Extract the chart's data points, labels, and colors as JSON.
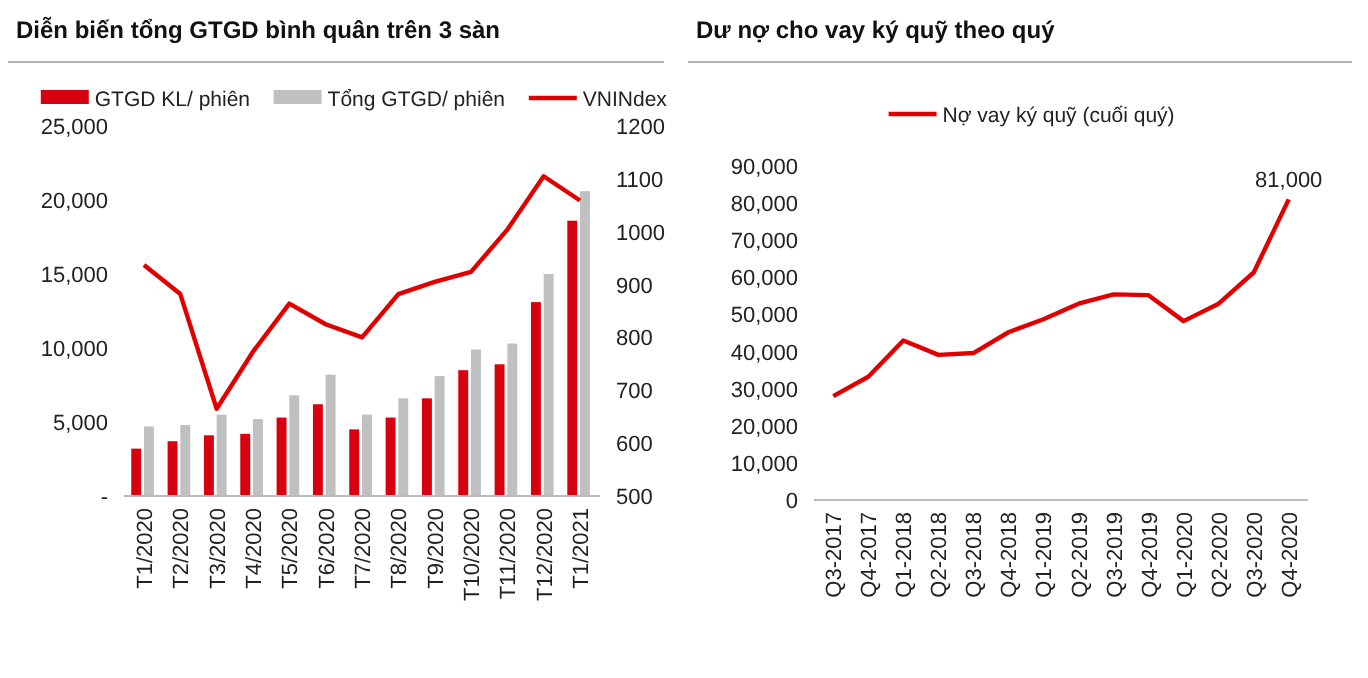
{
  "chart_data": [
    {
      "type": "bar",
      "title": "Diễn biến tổng GTGD bình quân trên 3 sàn",
      "categories": [
        "T1/2020",
        "T2/2020",
        "T3/2020",
        "T4/2020",
        "T5/2020",
        "T6/2020",
        "T7/2020",
        "T8/2020",
        "T9/2020",
        "T10/2020",
        "T11/2020",
        "T12/2020",
        "T1/2021"
      ],
      "series": [
        {
          "name": "GTGD KL/ phiên",
          "color": "#d7000f",
          "values": [
            3200,
            3700,
            4100,
            4200,
            5300,
            6200,
            4500,
            5300,
            6600,
            8500,
            8900,
            13100,
            18600
          ]
        },
        {
          "name": "Tổng GTGD/ phiên",
          "color": "#c0c0c0",
          "values": [
            4700,
            4800,
            5500,
            5200,
            6800,
            8200,
            5500,
            6600,
            8100,
            9900,
            10300,
            15000,
            20600
          ]
        },
        {
          "name": "VNINdex",
          "type": "line",
          "axis": "y2",
          "color": "#e00000",
          "values": [
            937,
            882,
            665,
            773,
            864,
            825,
            800,
            882,
            905,
            924,
            1004,
            1105,
            1059
          ]
        }
      ],
      "ylim": [
        0,
        25000
      ],
      "yticks": [
        {
          "value": 0,
          "label": "-"
        },
        {
          "value": 5000,
          "label": "5,000"
        },
        {
          "value": 10000,
          "label": "10,000"
        },
        {
          "value": 15000,
          "label": "15,000"
        },
        {
          "value": 20000,
          "label": "20,000"
        },
        {
          "value": 25000,
          "label": "25,000"
        }
      ],
      "y2lim": [
        500,
        1200
      ],
      "y2ticks": [
        500,
        600,
        700,
        800,
        900,
        1000,
        1100,
        1200
      ],
      "grid": false,
      "legend": "top"
    },
    {
      "type": "line",
      "title": "Dư nợ cho vay ký quỹ theo quý",
      "categories": [
        "Q3-2017",
        "Q4-2017",
        "Q1-2018",
        "Q2-2018",
        "Q3-2018",
        "Q4-2018",
        "Q1-2019",
        "Q2-2019",
        "Q3-2019",
        "Q4-2019",
        "Q1-2020",
        "Q2-2020",
        "Q3-2020",
        "Q4-2020"
      ],
      "series": [
        {
          "name": "Nợ vay ký quỹ (cuối quý)",
          "color": "#e00000",
          "values": [
            28000,
            33200,
            43000,
            39100,
            39600,
            45200,
            48700,
            52900,
            55400,
            55200,
            48200,
            52900,
            61300,
            81000
          ],
          "value_labels": [
            null,
            null,
            null,
            null,
            null,
            null,
            null,
            null,
            null,
            null,
            null,
            null,
            null,
            "81,000"
          ]
        }
      ],
      "ylim": [
        0,
        90000
      ],
      "yticks": [
        0,
        {
          "value": 10000,
          "label": "10,000"
        },
        {
          "value": 20000,
          "label": "20,000"
        },
        {
          "value": 30000,
          "label": "30,000"
        },
        {
          "value": 40000,
          "label": "40,000"
        },
        {
          "value": 50000,
          "label": "50,000"
        },
        {
          "value": 60000,
          "label": "60,000"
        },
        {
          "value": 70000,
          "label": "70,000"
        },
        {
          "value": 80000,
          "label": "80,000"
        },
        {
          "value": 90000,
          "label": "90,000"
        }
      ],
      "grid": false,
      "legend": "top"
    }
  ]
}
